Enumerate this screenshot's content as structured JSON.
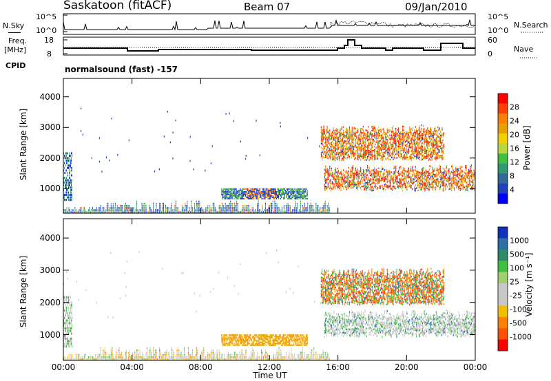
{
  "header": {
    "site": "Saskatoon (fitACF)",
    "beam": "Beam 07",
    "date": "09/Jan/2010"
  },
  "status_panel": {
    "left_label_top": "N.Sky",
    "left_tick_top": "10^5",
    "left_tick_bottom": "10^0",
    "right_tick_top": "10^5",
    "right_tick_bottom": "10^0",
    "right_label": "N.Search"
  },
  "freq_panel": {
    "left_label_line1": "Freq.",
    "left_label_line2": "[MHz]",
    "left_tick_top": "18",
    "left_tick_bottom": "8",
    "right_tick_top": "60",
    "right_tick_bottom": "0",
    "right_label": "Nave"
  },
  "cpid": {
    "label": "CPID",
    "value": "normalsound (fast) -157"
  },
  "chart_data": [
    {
      "type": "heatmap",
      "quantity": "Power",
      "ylabel": "Slant Range [km]",
      "xlabel": "",
      "yticks": [
        "1000",
        "2000",
        "3000",
        "4000"
      ],
      "ylim": [
        200,
        4600
      ],
      "xlim": [
        0,
        24
      ],
      "colorbar_label": "Power [dB]",
      "colorbar_ticks": [
        "28",
        "24",
        "20",
        "16",
        "12",
        "8",
        "4"
      ],
      "colorbar_colors": [
        "#ff0000",
        "#ff4000",
        "#ff8000",
        "#e8a000",
        "#f0d000",
        "#b8d840",
        "#40c040",
        "#2f9a6f",
        "#336699",
        "#2040c0",
        "#0000ff"
      ]
    },
    {
      "type": "heatmap",
      "quantity": "Velocity",
      "ylabel": "Slant Range [km]",
      "xlabel": "Time UT",
      "xticks": [
        "00:00",
        "04:00",
        "08:00",
        "12:00",
        "16:00",
        "20:00",
        "00:00"
      ],
      "yticks": [
        "1000",
        "2000",
        "3000",
        "4000"
      ],
      "ylim": [
        200,
        4600
      ],
      "xlim": [
        0,
        24
      ],
      "colorbar_label": "Velocity [m s⁻¹]",
      "colorbar_ticks": [
        "1000",
        "500",
        "100",
        "25",
        "-25",
        "-100",
        "-500",
        "-1000"
      ],
      "colorbar_colors": [
        "#1030c0",
        "#2e6fa8",
        "#2f8a6a",
        "#40c040",
        "#a0d070",
        "#c8c8c8",
        "#c8c8c8",
        "#f0c000",
        "#ff8000",
        "#ff5000",
        "#ff0000"
      ]
    }
  ]
}
